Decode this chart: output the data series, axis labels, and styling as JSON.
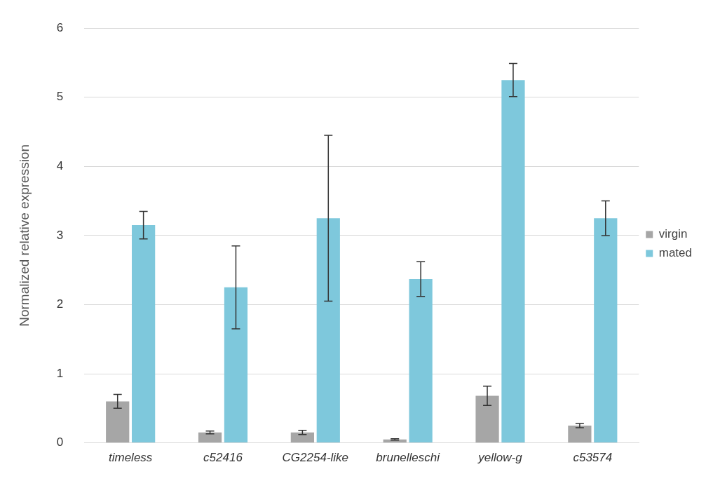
{
  "chart_data": {
    "type": "bar",
    "ylabel": "Normalized relative expression",
    "categories": [
      "timeless",
      "c52416",
      "CG2254-like",
      "brunelleschi",
      "yellow-g",
      "c53574"
    ],
    "series": [
      {
        "name": "virgin",
        "color": "#a6a6a6",
        "values": [
          0.6,
          0.15,
          0.15,
          0.05,
          0.68,
          0.25
        ],
        "errors": [
          0.1,
          0.02,
          0.03,
          0.01,
          0.14,
          0.03
        ]
      },
      {
        "name": "mated",
        "color": "#7ec8dc",
        "values": [
          3.15,
          2.25,
          3.25,
          2.37,
          5.25,
          3.25
        ],
        "errors": [
          0.2,
          0.6,
          1.2,
          0.25,
          0.24,
          0.25
        ]
      }
    ],
    "ylim": [
      0,
      6
    ],
    "yticks": [
      0,
      1,
      2,
      3,
      4,
      5,
      6
    ],
    "grid": "y",
    "legend": "right"
  }
}
